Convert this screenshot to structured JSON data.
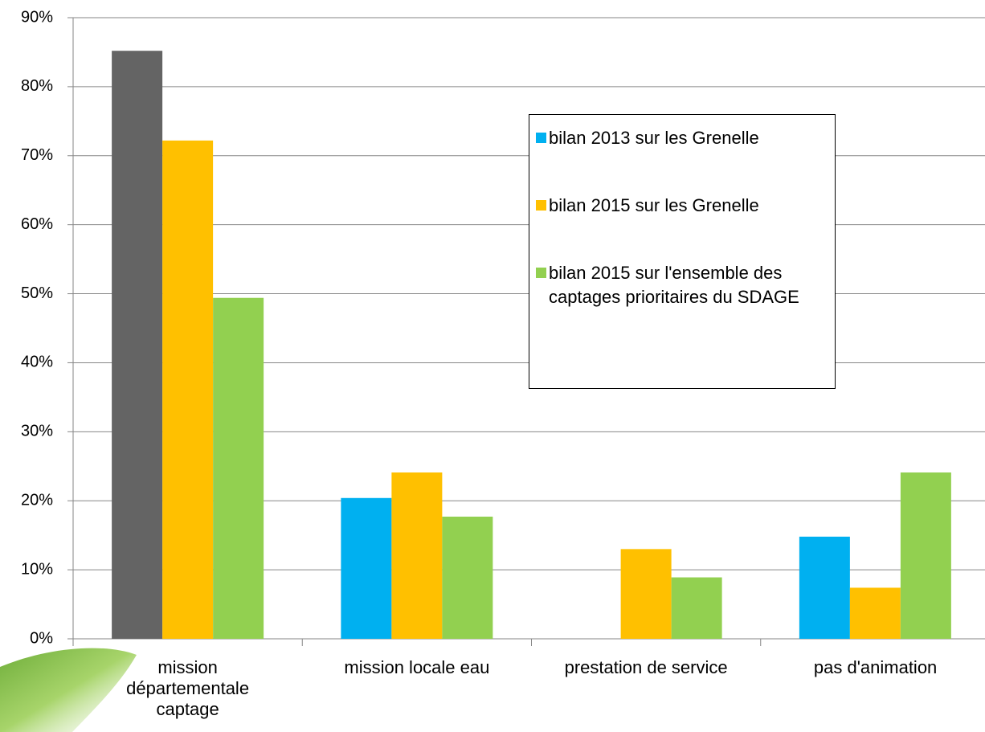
{
  "chart_data": {
    "type": "bar",
    "categories": [
      "mission départementale captage",
      "mission locale eau",
      "prestation de service",
      "pas d'animation"
    ],
    "series": [
      {
        "name": "bilan 2013 sur les Grenelle",
        "color": "#00b0f0",
        "point_colors": [
          "#646464",
          "#00b0f0",
          "#00b0f0",
          "#00b0f0"
        ],
        "values": [
          85.2,
          20.4,
          null,
          14.8
        ]
      },
      {
        "name": "bilan 2015 sur les Grenelle",
        "color": "#ffc000",
        "values": [
          72.2,
          24.1,
          13.0,
          7.4
        ]
      },
      {
        "name": "bilan 2015 sur l'ensemble des captages prioritaires du SDAGE",
        "color": "#92d050",
        "values": [
          49.4,
          17.7,
          8.9,
          24.1
        ]
      }
    ],
    "ylim": [
      0,
      90
    ],
    "yticks": [
      {
        "value": 0,
        "label": "0%"
      },
      {
        "value": 10,
        "label": "10%"
      },
      {
        "value": 20,
        "label": "20%"
      },
      {
        "value": 30,
        "label": "30%"
      },
      {
        "value": 40,
        "label": "40%"
      },
      {
        "value": 50,
        "label": "50%"
      },
      {
        "value": 60,
        "label": "60%"
      },
      {
        "value": 70,
        "label": "70%"
      },
      {
        "value": 80,
        "label": "80%"
      },
      {
        "value": 90,
        "label": "90%"
      }
    ],
    "grid": true
  }
}
